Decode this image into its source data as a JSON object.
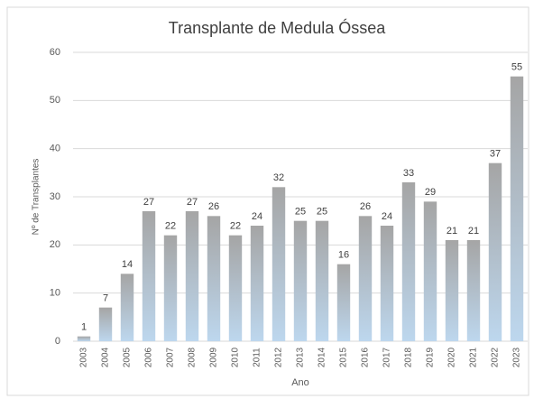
{
  "chart_data": {
    "type": "bar",
    "title": "Transplante de Medula Óssea",
    "y_label": "Nº de Transplantes",
    "x_label": "Ano",
    "categories": [
      "2003",
      "2004",
      "2005",
      "2006",
      "2007",
      "2008",
      "2009",
      "2010",
      "2011",
      "2012",
      "2013",
      "2014",
      "2015",
      "2016",
      "2017",
      "2018",
      "2019",
      "2020",
      "2021",
      "2022",
      "2023"
    ],
    "values": [
      1,
      7,
      14,
      27,
      22,
      27,
      26,
      22,
      24,
      32,
      25,
      25,
      16,
      26,
      24,
      33,
      29,
      21,
      21,
      37,
      55
    ],
    "gradient": [
      "#a5a5a5",
      "#bdd7ee"
    ],
    "ylim": [
      0,
      60
    ],
    "yticks": [
      0,
      10,
      20,
      30,
      40,
      50,
      60
    ],
    "grid": true,
    "data_labels": true
  }
}
